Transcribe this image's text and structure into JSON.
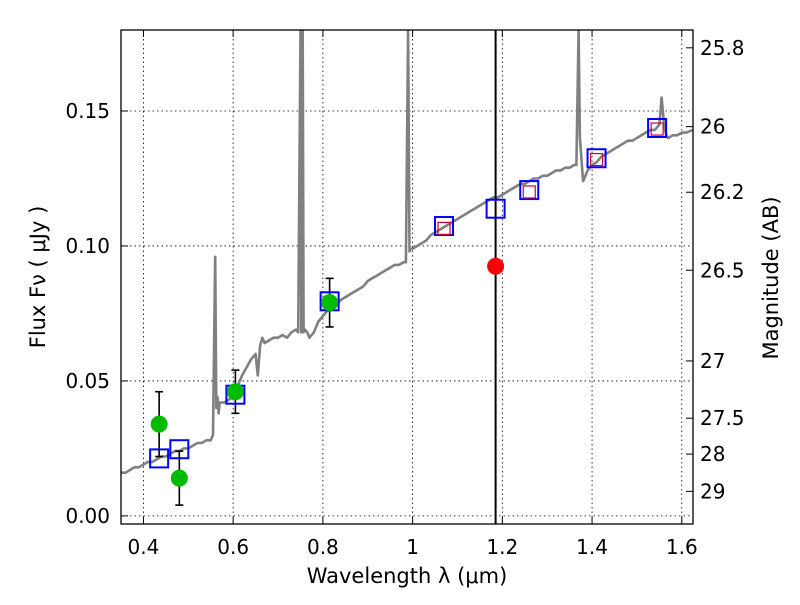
{
  "chart_data": {
    "type": "scatter",
    "xlabel": "Wavelength  λ (μm)",
    "ylabel": "Flux  Fν  ( μJy )",
    "y2label": "Magnitude (AB)",
    "xlim": [
      0.35,
      1.625
    ],
    "ylim": [
      -0.003,
      0.18
    ],
    "grid": true,
    "x_ticks": [
      0.4,
      0.6,
      0.8,
      1.0,
      1.2,
      1.4,
      1.6
    ],
    "x_tick_labels": [
      "0.4",
      "0.6",
      "0.8",
      "1",
      "1.2",
      "1.4",
      "1.6"
    ],
    "y_ticks": [
      0.0,
      0.05,
      0.1,
      0.15
    ],
    "y_tick_labels": [
      "0.00",
      "0.05",
      "0.10",
      "0.15"
    ],
    "right_ticks": [
      {
        "label": "25.8",
        "flux": 0.1734
      },
      {
        "label": "26",
        "flux": 0.1442
      },
      {
        "label": "26.2",
        "flux": 0.1199
      },
      {
        "label": "26.5",
        "flux": 0.091
      },
      {
        "label": "27",
        "flux": 0.0574
      },
      {
        "label": "27.5",
        "flux": 0.0362
      },
      {
        "label": "28",
        "flux": 0.0229
      },
      {
        "label": "29",
        "flux": 0.0091
      }
    ],
    "vertical_line_x": 1.185,
    "colors": {
      "model": "#808080",
      "observed": "#00bb00",
      "highlight": "#ff0000",
      "model_box": "#0000ff",
      "model_inner": "#cc0033",
      "errorbar": "#000000",
      "vline": "#000000"
    },
    "series": [
      {
        "name": "model SED",
        "style": "line",
        "x": [
          0.35,
          0.36,
          0.37,
          0.38,
          0.39,
          0.4,
          0.41,
          0.42,
          0.43,
          0.44,
          0.45,
          0.46,
          0.47,
          0.48,
          0.49,
          0.5,
          0.51,
          0.52,
          0.53,
          0.54,
          0.55,
          0.555,
          0.56,
          0.5625,
          0.565,
          0.5675,
          0.57,
          0.58,
          0.59,
          0.6,
          0.61,
          0.62,
          0.63,
          0.64,
          0.65,
          0.655,
          0.66,
          0.665,
          0.67,
          0.68,
          0.69,
          0.7,
          0.71,
          0.72,
          0.73,
          0.74,
          0.745,
          0.75,
          0.752,
          0.755,
          0.757,
          0.76,
          0.765,
          0.77,
          0.78,
          0.79,
          0.8,
          0.81,
          0.82,
          0.83,
          0.84,
          0.85,
          0.86,
          0.87,
          0.88,
          0.89,
          0.9,
          0.91,
          0.92,
          0.93,
          0.94,
          0.95,
          0.96,
          0.97,
          0.98,
          0.985,
          0.99,
          0.993,
          0.996,
          1.0,
          1.01,
          1.02,
          1.03,
          1.04,
          1.05,
          1.06,
          1.07,
          1.08,
          1.09,
          1.1,
          1.11,
          1.12,
          1.13,
          1.14,
          1.15,
          1.16,
          1.17,
          1.18,
          1.19,
          1.2,
          1.21,
          1.22,
          1.23,
          1.24,
          1.25,
          1.26,
          1.27,
          1.28,
          1.29,
          1.3,
          1.31,
          1.32,
          1.33,
          1.34,
          1.35,
          1.36,
          1.365,
          1.37,
          1.373,
          1.376,
          1.38,
          1.39,
          1.4,
          1.41,
          1.42,
          1.43,
          1.44,
          1.45,
          1.46,
          1.47,
          1.48,
          1.49,
          1.5,
          1.51,
          1.52,
          1.53,
          1.54,
          1.55,
          1.555,
          1.56,
          1.565,
          1.57,
          1.58,
          1.59,
          1.6,
          1.61,
          1.625
        ],
        "y": [
          0.016,
          0.016,
          0.017,
          0.018,
          0.018,
          0.019,
          0.02,
          0.02,
          0.021,
          0.022,
          0.022,
          0.023,
          0.024,
          0.024,
          0.025,
          0.025,
          0.026,
          0.027,
          0.027,
          0.028,
          0.028,
          0.03,
          0.096,
          0.04,
          0.044,
          0.038,
          0.042,
          0.042,
          0.043,
          0.044,
          0.048,
          0.052,
          0.055,
          0.058,
          0.06,
          0.052,
          0.063,
          0.066,
          0.064,
          0.065,
          0.066,
          0.066,
          0.067,
          0.066,
          0.068,
          0.069,
          0.068,
          0.18,
          0.068,
          0.18,
          0.068,
          0.069,
          0.068,
          0.066,
          0.068,
          0.072,
          0.074,
          0.076,
          0.077,
          0.078,
          0.08,
          0.081,
          0.082,
          0.083,
          0.084,
          0.085,
          0.087,
          0.088,
          0.089,
          0.09,
          0.091,
          0.092,
          0.093,
          0.093,
          0.094,
          0.094,
          0.18,
          0.098,
          0.099,
          0.099,
          0.1,
          0.101,
          0.102,
          0.104,
          0.105,
          0.106,
          0.107,
          0.108,
          0.109,
          0.11,
          0.111,
          0.112,
          0.113,
          0.114,
          0.115,
          0.116,
          0.117,
          0.118,
          0.118,
          0.119,
          0.12,
          0.121,
          0.122,
          0.123,
          0.123,
          0.124,
          0.125,
          0.125,
          0.126,
          0.126,
          0.127,
          0.128,
          0.128,
          0.129,
          0.129,
          0.13,
          0.13,
          0.18,
          0.14,
          0.133,
          0.124,
          0.128,
          0.13,
          0.131,
          0.133,
          0.134,
          0.135,
          0.136,
          0.137,
          0.138,
          0.139,
          0.139,
          0.14,
          0.141,
          0.142,
          0.143,
          0.143,
          0.145,
          0.155,
          0.146,
          0.141,
          0.14,
          0.141,
          0.141,
          0.142,
          0.142,
          0.143
        ]
      },
      {
        "name": "observed photometry",
        "style": "errorbar",
        "x": [
          0.435,
          0.48,
          0.605,
          0.815
        ],
        "y": [
          0.034,
          0.014,
          0.046,
          0.079
        ],
        "yerr": [
          0.012,
          0.01,
          0.008,
          0.009
        ]
      },
      {
        "name": "highlighted measurement",
        "style": "dot",
        "x": [
          1.185
        ],
        "y": [
          0.0925
        ]
      },
      {
        "name": "model photometry",
        "style": "open-square",
        "x": [
          0.435,
          0.48,
          0.605,
          0.815,
          1.07,
          1.185,
          1.26,
          1.41,
          1.545
        ],
        "y": [
          0.0213,
          0.0247,
          0.0449,
          0.0795,
          0.1074,
          0.1138,
          0.1207,
          0.1325,
          0.1437
        ]
      },
      {
        "name": "observed (small squares)",
        "style": "small-square",
        "x": [
          1.07,
          1.26,
          1.41,
          1.545
        ],
        "y": [
          0.1065,
          0.12,
          0.132,
          0.1433
        ]
      }
    ]
  }
}
